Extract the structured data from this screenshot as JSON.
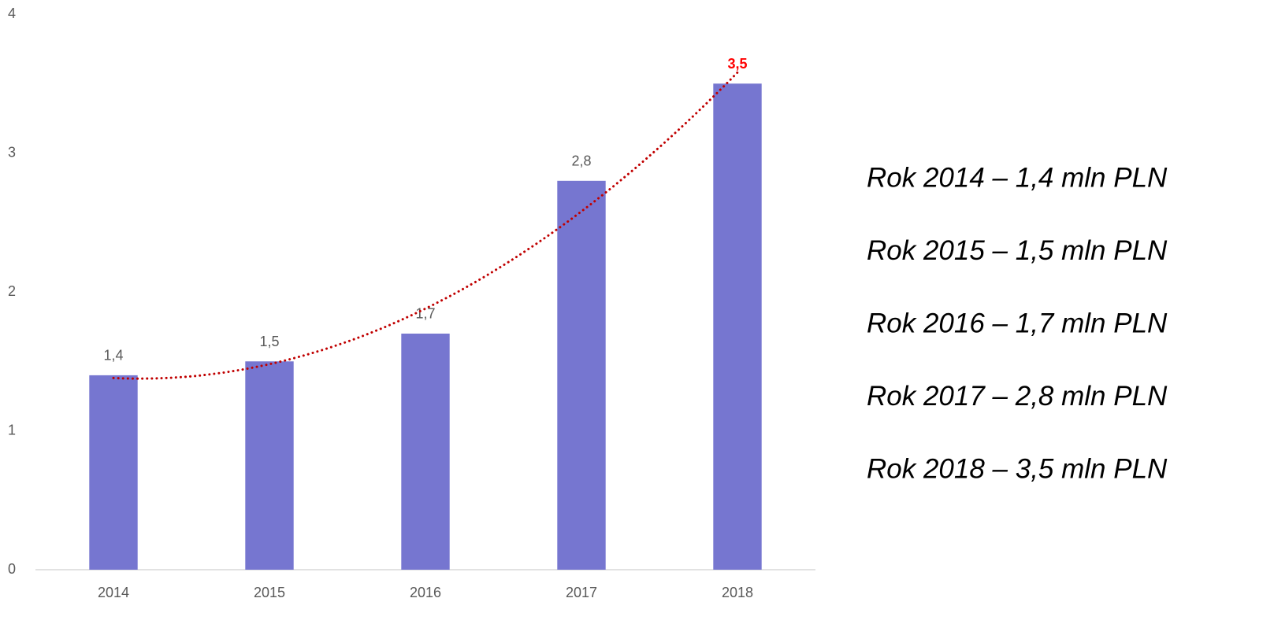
{
  "chart_data": {
    "type": "bar",
    "categories": [
      "2014",
      "2015",
      "2016",
      "2017",
      "2018"
    ],
    "values": [
      1.4,
      1.5,
      1.7,
      2.8,
      3.5
    ],
    "value_labels": [
      "1,4",
      "1,5",
      "1,7",
      "2,8",
      "3,5"
    ],
    "color": "#7676d0",
    "ylim": [
      0,
      4
    ],
    "yticks": [
      0,
      1,
      2,
      3,
      4
    ],
    "grid": false,
    "trendline": {
      "type": "polynomial",
      "color": "#c00000"
    },
    "highlight": {
      "index": 4,
      "color": "#ff0000"
    },
    "annotations": [
      "Rok 2014 – 1,4 mln PLN",
      "Rok 2015 – 1,5 mln PLN",
      "Rok 2016 – 1,7 mln PLN",
      "Rok 2017 – 2,8 mln PLN",
      "Rok 2018 – 3,5 mln PLN"
    ]
  }
}
